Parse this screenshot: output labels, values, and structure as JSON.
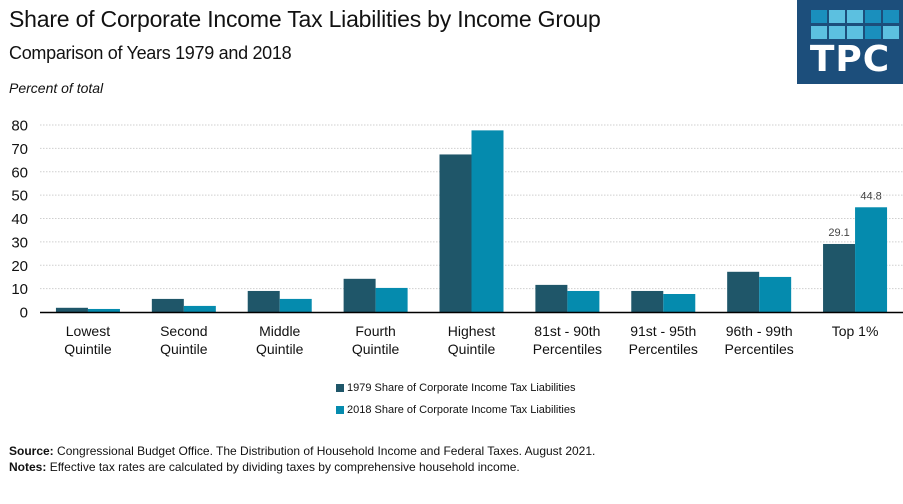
{
  "header": {
    "title": "Share of Corporate Income Tax Liabilities by Income Group",
    "subtitle": "Comparison of Years 1979 and 2018",
    "y_axis_caption": "Percent of total"
  },
  "logo": {
    "text": "TPC",
    "background": "#1c4e7b"
  },
  "chart_data": {
    "type": "bar",
    "title": "Share of Corporate Income Tax Liabilities by Income Group",
    "subtitle": "Comparison of Years 1979 and 2018",
    "xlabel": "",
    "ylabel": "Percent of total",
    "ylim": [
      0,
      80
    ],
    "yticks": [
      0,
      10,
      20,
      30,
      40,
      50,
      60,
      70,
      80
    ],
    "grid": true,
    "legend_position": "bottom-center",
    "categories": [
      [
        "Lowest",
        "Quintile"
      ],
      [
        "Second",
        "Quintile"
      ],
      [
        "Middle",
        "Quintile"
      ],
      [
        "Fourth",
        "Quintile"
      ],
      [
        "Highest",
        "Quintile"
      ],
      [
        "81st - 90th",
        "Percentiles"
      ],
      [
        "91st - 95th",
        "Percentiles"
      ],
      [
        "96th - 99th",
        "Percentiles"
      ],
      [
        "Top 1%"
      ]
    ],
    "series": [
      {
        "name": "1979 Share of Corporate Income Tax Liabilities",
        "color": "#1f5669",
        "values": [
          1.8,
          5.6,
          9.0,
          14.2,
          67.4,
          11.6,
          9.0,
          17.2,
          29.1
        ],
        "labels": [
          null,
          null,
          null,
          null,
          null,
          null,
          null,
          null,
          "29.1"
        ]
      },
      {
        "name": "2018 Share of Corporate Income Tax Liabilities",
        "color": "#058bae",
        "values": [
          1.3,
          2.6,
          5.6,
          10.3,
          77.7,
          9.0,
          7.7,
          15.0,
          44.8
        ],
        "labels": [
          null,
          null,
          null,
          null,
          null,
          null,
          null,
          null,
          "44.8"
        ]
      }
    ]
  },
  "footer": {
    "source_label": "Source:",
    "source_text": "Congressional Budget Office. The Distribution of Household Income and Federal Taxes. August 2021.",
    "notes_label": "Notes:",
    "notes_text": "Effective tax rates are calculated by dividing taxes by comprehensive household income."
  }
}
